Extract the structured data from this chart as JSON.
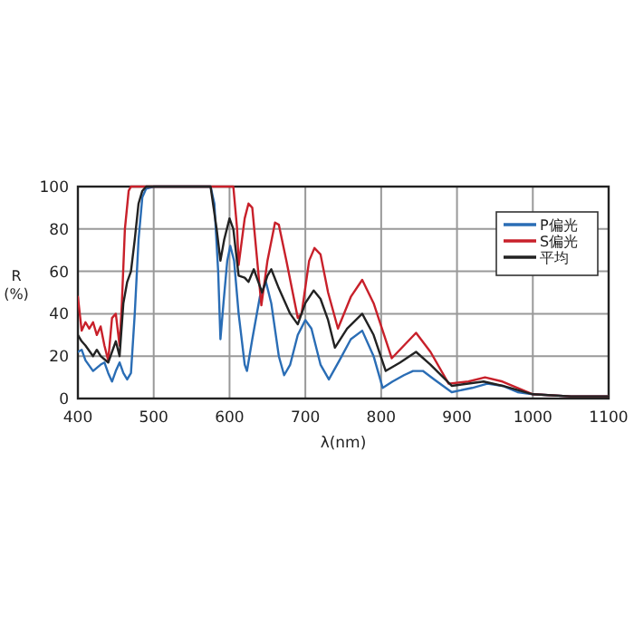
{
  "chart_data": {
    "type": "line",
    "xlabel": "λ(nm)",
    "ylabel": "R (%)",
    "xlim": [
      400,
      1100
    ],
    "ylim": [
      0,
      100
    ],
    "xticks": [
      400,
      500,
      600,
      700,
      800,
      900,
      1000,
      1100
    ],
    "yticks": [
      0,
      20,
      40,
      60,
      80,
      100
    ],
    "grid": true,
    "legend": "top right",
    "line_style": "solid",
    "marker": "none",
    "series": [
      {
        "name": "P偏光",
        "color": "#2a6db5",
        "x": [
          400,
          405,
          410,
          420,
          430,
          435,
          440,
          445,
          450,
          455,
          460,
          465,
          470,
          475,
          480,
          485,
          490,
          500,
          575,
          580,
          585,
          588,
          592,
          597,
          601,
          606,
          612,
          620,
          623,
          630,
          640,
          648,
          655,
          665,
          672,
          680,
          690,
          700,
          708,
          720,
          731,
          745,
          760,
          775,
          790,
          802,
          815,
          830,
          842,
          855,
          870,
          893,
          920,
          940,
          960,
          980,
          1000,
          1050,
          1100
        ],
        "values": [
          22,
          23,
          18,
          13,
          16,
          17,
          12,
          8,
          13,
          17,
          12,
          9,
          12,
          40,
          75,
          95,
          99,
          100,
          100,
          92,
          60,
          28,
          45,
          65,
          72,
          65,
          40,
          16,
          13,
          28,
          48,
          55,
          45,
          20,
          11,
          16,
          30,
          37,
          33,
          16,
          9,
          18,
          28,
          32,
          20,
          5,
          8,
          11,
          13,
          13,
          9,
          3,
          5,
          7,
          6,
          3,
          2,
          1,
          1
        ]
      },
      {
        "name": "S偏光",
        "color": "#c8202a",
        "x": [
          400,
          405,
          410,
          415,
          420,
          425,
          430,
          435,
          440,
          445,
          450,
          455,
          458,
          462,
          467,
          470,
          605,
          610,
          612,
          620,
          625,
          630,
          642,
          650,
          660,
          665,
          675,
          690,
          695,
          705,
          712,
          720,
          730,
          743,
          760,
          775,
          790,
          814,
          830,
          846,
          865,
          889,
          915,
          937,
          960,
          980,
          1000,
          1050,
          1100
        ],
        "values": [
          48,
          32,
          36,
          33,
          36,
          30,
          34,
          25,
          18,
          38,
          40,
          25,
          45,
          80,
          98,
          100,
          100,
          80,
          63,
          85,
          92,
          90,
          44,
          65,
          83,
          82,
          65,
          38,
          40,
          65,
          71,
          68,
          50,
          33,
          48,
          56,
          45,
          19,
          25,
          31,
          22,
          7,
          8,
          10,
          8,
          5,
          2,
          1,
          1
        ]
      },
      {
        "name": "平均",
        "color": "#222222",
        "x": [
          400,
          405,
          410,
          420,
          425,
          430,
          440,
          445,
          450,
          455,
          460,
          465,
          470,
          475,
          480,
          485,
          490,
          575,
          583,
          588,
          593,
          600,
          605,
          612,
          620,
          625,
          632,
          638,
          643,
          650,
          655,
          665,
          680,
          690,
          700,
          711,
          720,
          730,
          739,
          755,
          775,
          790,
          806,
          825,
          846,
          865,
          893,
          935,
          960,
          980,
          1000,
          1050,
          1100
        ],
        "values": [
          30,
          27,
          25,
          20,
          23,
          20,
          17,
          22,
          27,
          20,
          45,
          55,
          60,
          75,
          92,
          98,
          100,
          100,
          80,
          65,
          75,
          85,
          80,
          58,
          57,
          55,
          61,
          55,
          50,
          58,
          61,
          52,
          40,
          35,
          45,
          51,
          47,
          37,
          24,
          33,
          40,
          30,
          13,
          17,
          22,
          16,
          6,
          8,
          6,
          4,
          2,
          1,
          1
        ]
      }
    ]
  }
}
